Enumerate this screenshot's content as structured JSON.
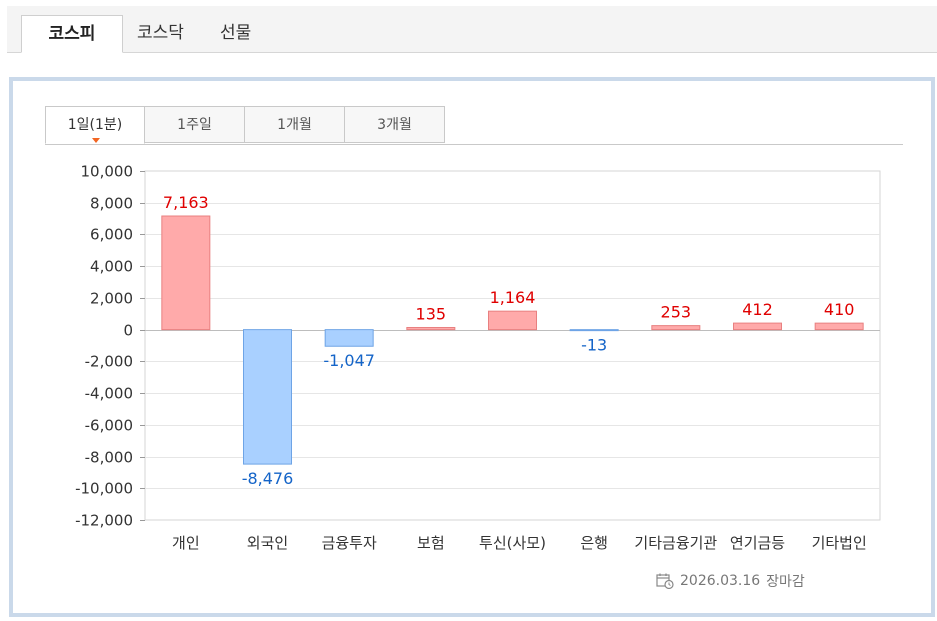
{
  "market_tabs": [
    {
      "label": "코스피",
      "active": true
    },
    {
      "label": "코스닥",
      "active": false
    },
    {
      "label": "선물",
      "active": false
    }
  ],
  "period_tabs": [
    {
      "label": "1일(1분)",
      "active": true
    },
    {
      "label": "1주일",
      "active": false
    },
    {
      "label": "1개월",
      "active": false
    },
    {
      "label": "3개월",
      "active": false
    }
  ],
  "footer": {
    "icon": "calendar-clock-icon",
    "date": "2026.03.16",
    "status": "장마감"
  },
  "colors": {
    "positive_fill": "#ffaaaa",
    "positive_stroke": "#e88080",
    "positive_label": "#e00000",
    "negative_fill": "#a9d0ff",
    "negative_stroke": "#6ea4e6",
    "negative_label": "#1464c8"
  },
  "chart_data": {
    "type": "bar",
    "categories": [
      "개인",
      "외국인",
      "금융투자",
      "보험",
      "투신(사모)",
      "은행",
      "기타금융기관",
      "연기금등",
      "기타법인"
    ],
    "values": [
      7163,
      -8476,
      -1047,
      135,
      1164,
      -13,
      253,
      412,
      410
    ],
    "data_labels": [
      "7,163",
      "-8,476",
      "-1,047",
      "135",
      "1,164",
      "-13",
      "253",
      "412",
      "410"
    ],
    "ylim": [
      -12000,
      10000
    ],
    "yticks": [
      10000,
      8000,
      6000,
      4000,
      2000,
      0,
      -2000,
      -4000,
      -6000,
      -8000,
      -10000,
      -12000
    ],
    "ytick_labels": [
      "10,000",
      "8,000",
      "6,000",
      "4,000",
      "2,000",
      "0",
      "-2,000",
      "-4,000",
      "-6,000",
      "-8,000",
      "-10,000",
      "-12,000"
    ],
    "grid": true,
    "legend": "none",
    "title": "",
    "xlabel": "",
    "ylabel": ""
  }
}
